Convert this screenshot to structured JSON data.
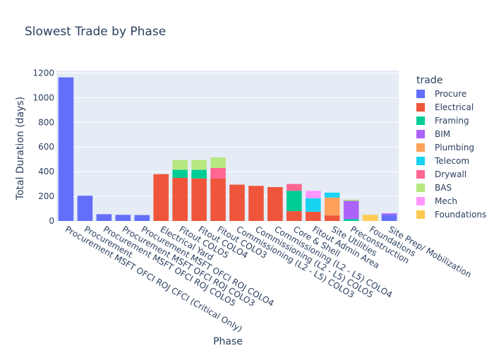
{
  "chart_data": {
    "type": "bar",
    "mode": "stacked",
    "title": "Slowest Trade by Phase",
    "xlabel": "Phase",
    "ylabel": "Total Duration (days)",
    "ylim": [
      0,
      1220
    ],
    "yticks": [
      0,
      200,
      400,
      600,
      800,
      1000,
      1200
    ],
    "grid": true,
    "legend_title": "trade",
    "legend_position": "right",
    "categories": [
      "Procurement MSFT OFCI ROJ CFCI (Critical Only)",
      "Procurement",
      "Procurement MSFT OFCI ROJ COLO5",
      "Procurement MSFT OFCI ROJ COLO3",
      "Procurement MSFT OFCI ROJ COLO4",
      "Electrical Yard",
      "Fitout COLO5",
      "Fitout COLO4",
      "Fitout COLO3",
      "Commissioning (L2 - L5) COLO3",
      "Commissioning (L2 - L5) COLO5",
      "Commissioning (L2 - L5) COLO4",
      "Core & Shell",
      "Fitout Admin Area",
      "Site Utilities",
      "Preconstruction",
      "Foundations",
      "Site Prep/ Mobilization"
    ],
    "series": [
      {
        "name": "Procure",
        "color": "#636efa",
        "values": [
          1165,
          205,
          55,
          50,
          48,
          0,
          0,
          0,
          0,
          0,
          0,
          0,
          0,
          0,
          0,
          0,
          0,
          50
        ]
      },
      {
        "name": "Electrical",
        "color": "#ef553b",
        "values": [
          0,
          0,
          0,
          0,
          0,
          380,
          350,
          345,
          345,
          295,
          285,
          275,
          80,
          75,
          45,
          0,
          0,
          0
        ]
      },
      {
        "name": "Framing",
        "color": "#00cc96",
        "values": [
          0,
          0,
          0,
          0,
          0,
          0,
          65,
          70,
          0,
          0,
          0,
          0,
          165,
          0,
          0,
          15,
          0,
          0
        ]
      },
      {
        "name": "BIM",
        "color": "#ab63fa",
        "values": [
          0,
          0,
          0,
          0,
          0,
          0,
          0,
          0,
          0,
          0,
          0,
          0,
          0,
          0,
          0,
          148,
          0,
          12
        ]
      },
      {
        "name": "Plumbing",
        "color": "#ffa15a",
        "values": [
          0,
          0,
          0,
          0,
          0,
          0,
          0,
          0,
          0,
          0,
          0,
          0,
          0,
          0,
          145,
          0,
          0,
          0
        ]
      },
      {
        "name": "Telecom",
        "color": "#19d3f3",
        "values": [
          0,
          0,
          0,
          0,
          0,
          0,
          0,
          0,
          0,
          0,
          0,
          0,
          0,
          110,
          40,
          0,
          0,
          0
        ]
      },
      {
        "name": "Drywall",
        "color": "#ff6692",
        "values": [
          0,
          0,
          0,
          0,
          0,
          0,
          0,
          0,
          85,
          0,
          0,
          0,
          55,
          0,
          0,
          0,
          0,
          0
        ]
      },
      {
        "name": "BAS",
        "color": "#b6e880",
        "values": [
          0,
          0,
          0,
          0,
          0,
          0,
          80,
          80,
          85,
          0,
          0,
          0,
          0,
          0,
          0,
          10,
          0,
          0
        ]
      },
      {
        "name": "Mech",
        "color": "#ff97ff",
        "values": [
          0,
          0,
          0,
          0,
          0,
          0,
          0,
          0,
          0,
          0,
          0,
          0,
          0,
          60,
          0,
          0,
          0,
          0
        ]
      },
      {
        "name": "Foundations",
        "color": "#fecb52",
        "values": [
          0,
          0,
          0,
          0,
          0,
          0,
          0,
          0,
          0,
          0,
          0,
          0,
          0,
          0,
          0,
          0,
          50,
          0
        ]
      }
    ]
  },
  "colors": {
    "plot_background": "#e5ecf6",
    "grid": "#ffffff",
    "text": "#2a3f5f"
  }
}
